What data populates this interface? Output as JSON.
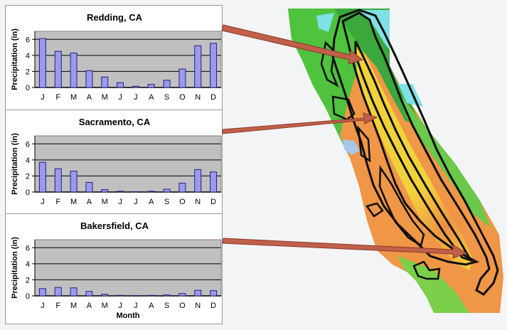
{
  "chart_data": [
    {
      "type": "bar",
      "title": "Redding, CA",
      "ylabel": "Precipitation (in)",
      "xlabel": "",
      "categories": [
        "J",
        "F",
        "M",
        "A",
        "M",
        "J",
        "J",
        "A",
        "S",
        "O",
        "N",
        "D"
      ],
      "values": [
        6.1,
        4.5,
        4.3,
        2.1,
        1.3,
        0.6,
        0.15,
        0.4,
        0.9,
        2.3,
        5.2,
        5.5
      ],
      "ylim": [
        0,
        7
      ],
      "yticks": [
        0,
        2,
        4,
        6
      ],
      "grid": true
    },
    {
      "type": "bar",
      "title": "Sacramento, CA",
      "ylabel": "Precipitation (in)",
      "xlabel": "",
      "categories": [
        "J",
        "F",
        "M",
        "A",
        "M",
        "J",
        "J",
        "A",
        "S",
        "O",
        "N",
        "D"
      ],
      "values": [
        3.7,
        2.9,
        2.6,
        1.2,
        0.3,
        0.1,
        0.05,
        0.1,
        0.35,
        1.1,
        2.8,
        2.5
      ],
      "ylim": [
        0,
        7
      ],
      "yticks": [
        0,
        2,
        4,
        6
      ],
      "grid": true
    },
    {
      "type": "bar",
      "title": "Bakersfield, CA",
      "ylabel": "Precipitation (in)",
      "xlabel": "Month",
      "categories": [
        "J",
        "F",
        "M",
        "A",
        "M",
        "J",
        "J",
        "A",
        "S",
        "O",
        "N",
        "D"
      ],
      "values": [
        0.9,
        1.05,
        1.0,
        0.55,
        0.2,
        0.07,
        0.03,
        0.07,
        0.12,
        0.3,
        0.7,
        0.65
      ],
      "ylim": [
        0,
        7
      ],
      "yticks": [
        0,
        2,
        4,
        6
      ],
      "grid": true
    }
  ],
  "colors": {
    "bar_fill": "#9a9af0",
    "bar_stroke": "#22227a",
    "plot_bg": "#c0c0c0",
    "arrow": "#c0604a"
  }
}
